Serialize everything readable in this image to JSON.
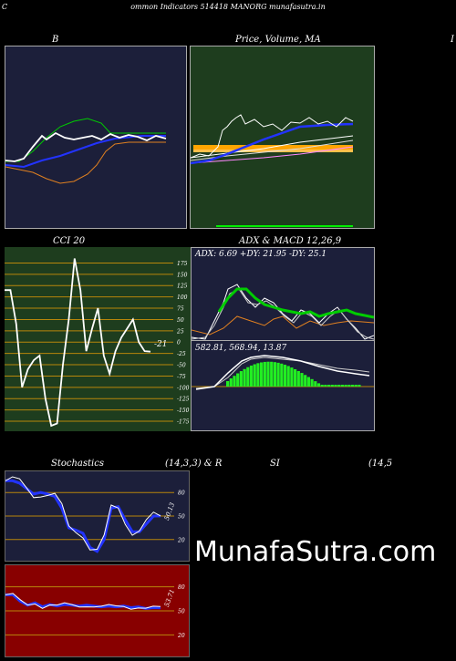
{
  "page": {
    "left_letter": "C",
    "header": "ommon Indicators 514418 MANORG munafasutra.in",
    "watermark": "MunafaSutra.com"
  },
  "labels": {
    "b_title": "B",
    "price_title": "Price,  Volume,  MA",
    "right_edge": "I",
    "cci_title": "CCI 20",
    "cci_value": "-21",
    "adx_title": "ADX  & MACD 12,26,9",
    "adx_values": "ADX: 6.69 +DY: 21.95 -DY: 25.1",
    "macd_values": "582.81,  568.94,  13.87",
    "stoch_title": "Stochastics",
    "stoch_params": "(14,3,3) & R",
    "rsi_title": "SI",
    "rsi_params": "(14,5",
    "stoch_value": "50.13",
    "rsi_value": "53.71"
  },
  "colors": {
    "navy_bg": "#1c1f3a",
    "green_bg": "#1e3d1e",
    "red_bg": "#880000",
    "grid": "#b8860b",
    "price_line": "#ffffff",
    "ma_blue": "#2233ff",
    "ma_green": "#00cc00",
    "ma_orange": "#e08020",
    "volume": "#ffa500",
    "macd_hist": "#22ee22"
  },
  "chart_data": [
    {
      "type": "line",
      "name": "bollinger",
      "series": [
        {
          "values": [
            1.6,
            1.5,
            1.7,
            3.2,
            4.9,
            4.3,
            3.5,
            3.9,
            3.5,
            3.2,
            3.4,
            3.7,
            3.9,
            3.5,
            3.6,
            3.7,
            3.3,
            3.3,
            3.6,
            3.4
          ]
        }
      ]
    },
    {
      "type": "line",
      "name": "price_volume_ma",
      "series": [
        {
          "values": [
            3.0,
            3.6,
            3.3,
            3.7,
            4.9,
            5.3,
            5.9,
            6.0,
            5.4,
            6.2,
            7.0,
            6.9,
            7.6,
            7.1,
            7.3,
            6.9,
            7.4,
            7.3,
            7.3,
            7.4
          ]
        }
      ]
    },
    {
      "type": "line",
      "name": "cci",
      "yticks": [
        175,
        150,
        125,
        100,
        75,
        50,
        25,
        0,
        -25,
        -50,
        -75,
        -100,
        -125,
        -150,
        -175
      ],
      "ylim": [
        -185,
        190
      ],
      "series": [
        {
          "values": [
            115,
            115,
            40,
            -100,
            -60,
            -40,
            -30,
            -125,
            -185,
            -180,
            -50,
            50,
            185,
            115,
            -20,
            30,
            75,
            -30,
            -70,
            -20,
            10,
            30,
            50,
            0,
            -20,
            -21
          ]
        }
      ]
    },
    {
      "type": "line",
      "name": "adx",
      "series": [
        {
          "name": "+DY",
          "values": [
            20,
            25,
            35,
            48,
            52,
            45,
            40,
            30,
            28,
            35,
            25,
            30,
            35,
            30,
            25,
            33,
            28,
            30,
            30,
            21.95
          ]
        },
        {
          "name": "-DY",
          "values": [
            22,
            20,
            15,
            10,
            8,
            12,
            18,
            25,
            30,
            28,
            30,
            25,
            20,
            25,
            28,
            22,
            26,
            25,
            24,
            25.1
          ]
        },
        {
          "name": "ADX",
          "values": [
            30,
            35,
            40,
            48,
            52,
            50,
            45,
            38,
            33,
            30,
            28,
            25,
            22,
            20,
            18,
            15,
            12,
            10,
            8,
            6.69
          ]
        }
      ]
    },
    {
      "type": "bar",
      "name": "macd",
      "values": [
        582.81,
        568.94,
        13.87
      ]
    },
    {
      "type": "line",
      "name": "stochastics",
      "yticks": [
        80,
        50,
        20
      ],
      "ylim": [
        0,
        100
      ],
      "series": [
        {
          "values": [
            95,
            95,
            92,
            85,
            78,
            80,
            78,
            75,
            60,
            35,
            32,
            28,
            10,
            5,
            20,
            60,
            62,
            45,
            30,
            30,
            40,
            50,
            50.13
          ]
        }
      ]
    },
    {
      "type": "line",
      "name": "rsi",
      "yticks": [
        80,
        50,
        20
      ],
      "ylim": [
        0,
        100
      ],
      "series": [
        {
          "values": [
            70,
            70,
            62,
            57,
            60,
            55,
            58,
            56,
            58,
            57,
            56,
            57,
            56,
            55,
            56,
            55,
            56,
            54,
            55,
            53,
            54,
            53.71
          ]
        }
      ]
    }
  ]
}
